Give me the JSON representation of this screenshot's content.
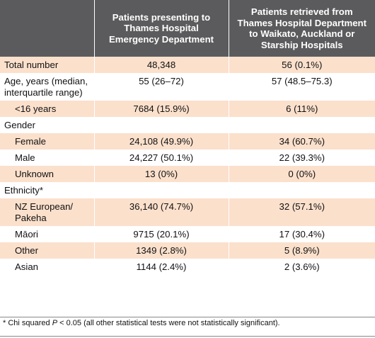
{
  "table": {
    "headers": [
      "",
      "Patients presenting to Thames Hospital Emergency Department",
      "Patients retrieved from Thames Hospital Depart­ment to Waikato, Auckland or Starship Hospitals"
    ],
    "rows": [
      {
        "label": "Total number",
        "col1": "48,348",
        "col2": "56 (0.1%)",
        "indent": false
      },
      {
        "label": "Age, years (median, inter­quartile range)",
        "col1": "55 (26–72)",
        "col2": "57 (48.5–75.3)",
        "indent": false
      },
      {
        "label": "<16 years",
        "col1": "7684 (15.9%)",
        "col2": "6 (11%)",
        "indent": true
      },
      {
        "label": "Gender",
        "col1": "",
        "col2": "",
        "indent": false
      },
      {
        "label": "Female",
        "col1": "24,108 (49.9%)",
        "col2": "34 (60.7%)",
        "indent": true
      },
      {
        "label": "Male",
        "col1": "24,227 (50.1%)",
        "col2": "22 (39.3%)",
        "indent": true
      },
      {
        "label": "Unknown",
        "col1": "13 (0%)",
        "col2": "0 (0%)",
        "indent": true
      },
      {
        "label": "Ethnicity*",
        "col1": "",
        "col2": "",
        "indent": false
      },
      {
        "label": "NZ European/ Pakeha",
        "col1": "36,140 (74.7%)",
        "col2": "32 (57.1%)",
        "indent": true
      },
      {
        "label": "Māori",
        "col1": "9715 (20.1%)",
        "col2": "17 (30.4%)",
        "indent": true
      },
      {
        "label": "Other",
        "col1": "1349 (2.8%)",
        "col2": "5 (8.9%)",
        "indent": true
      },
      {
        "label": "Asian",
        "col1": "1144 (2.4%)",
        "col2": "2 (3.6%)",
        "indent": true
      }
    ]
  },
  "footnote": {
    "prefix": "* Chi squared ",
    "p": "P",
    "suffix": " < 0.05 (all other statistical tests were not statistically significant)."
  },
  "colors": {
    "header_bg": "#5b5b5d",
    "row_peach": "#fbe0cc",
    "row_white": "#ffffff"
  }
}
